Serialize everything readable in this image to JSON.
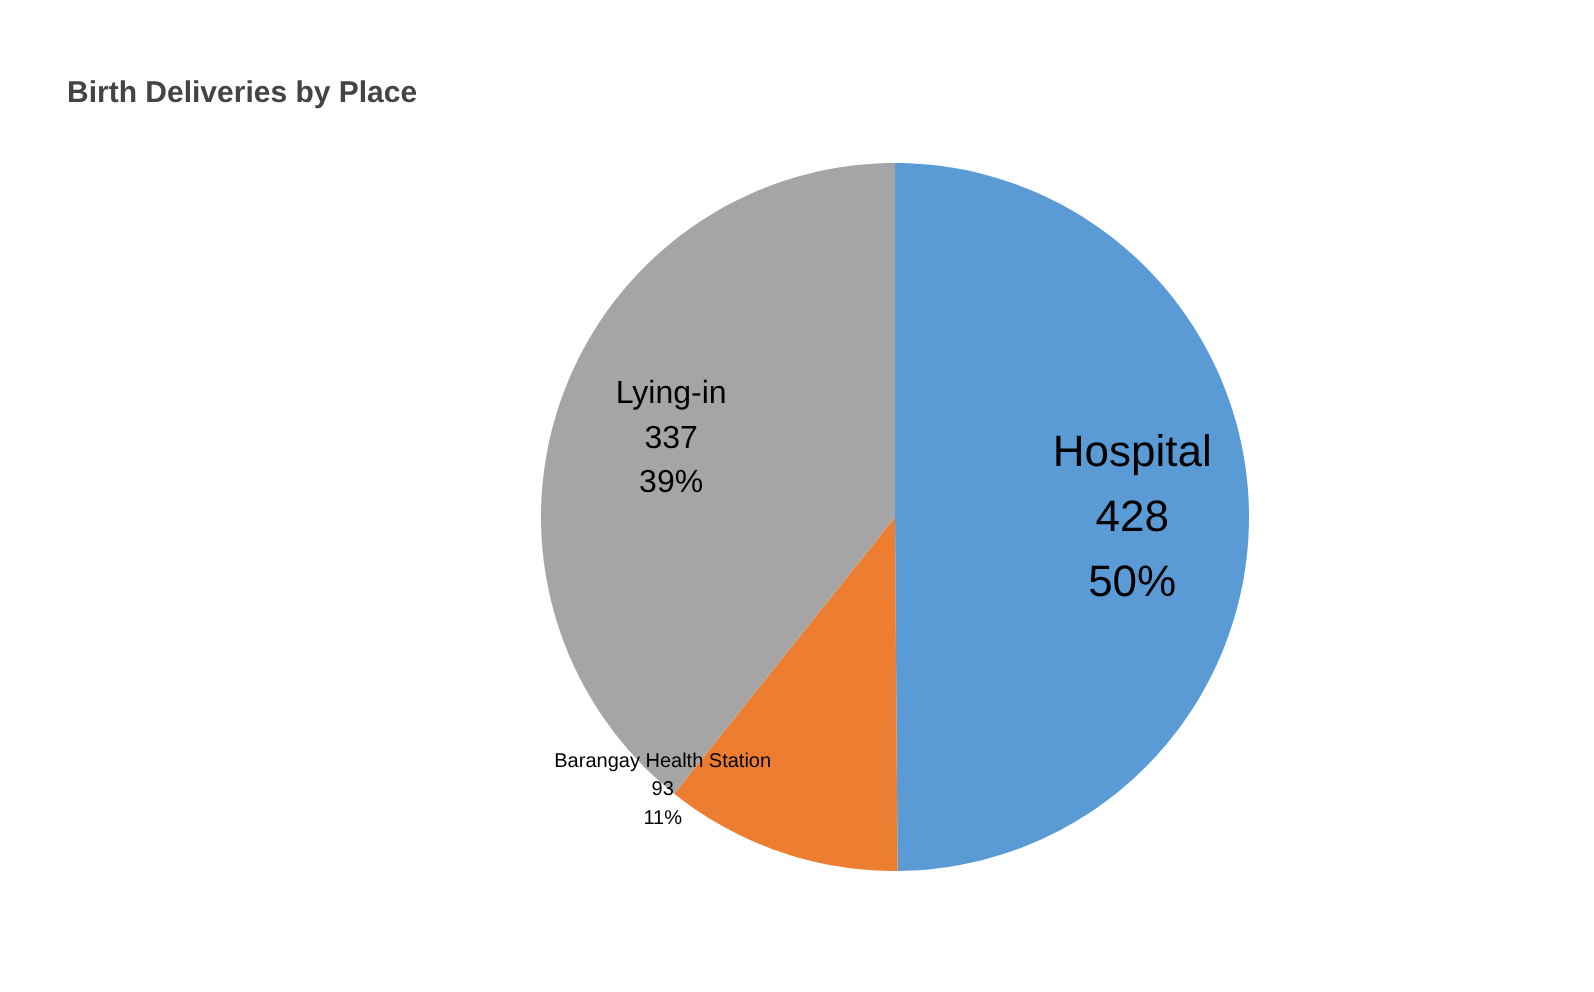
{
  "chart_data": {
    "type": "pie",
    "title": "Birth Deliveries by Place",
    "categories": [
      "Hospital",
      "Barangay Health Station",
      "Lying-in"
    ],
    "values": [
      428,
      93,
      337
    ],
    "value_labels": [
      "428\n50%",
      "93\n11%",
      "337\n39%"
    ],
    "colors": [
      "#5b9bd5",
      "#ed7d31",
      "#a5a5a5"
    ],
    "legend": false
  }
}
